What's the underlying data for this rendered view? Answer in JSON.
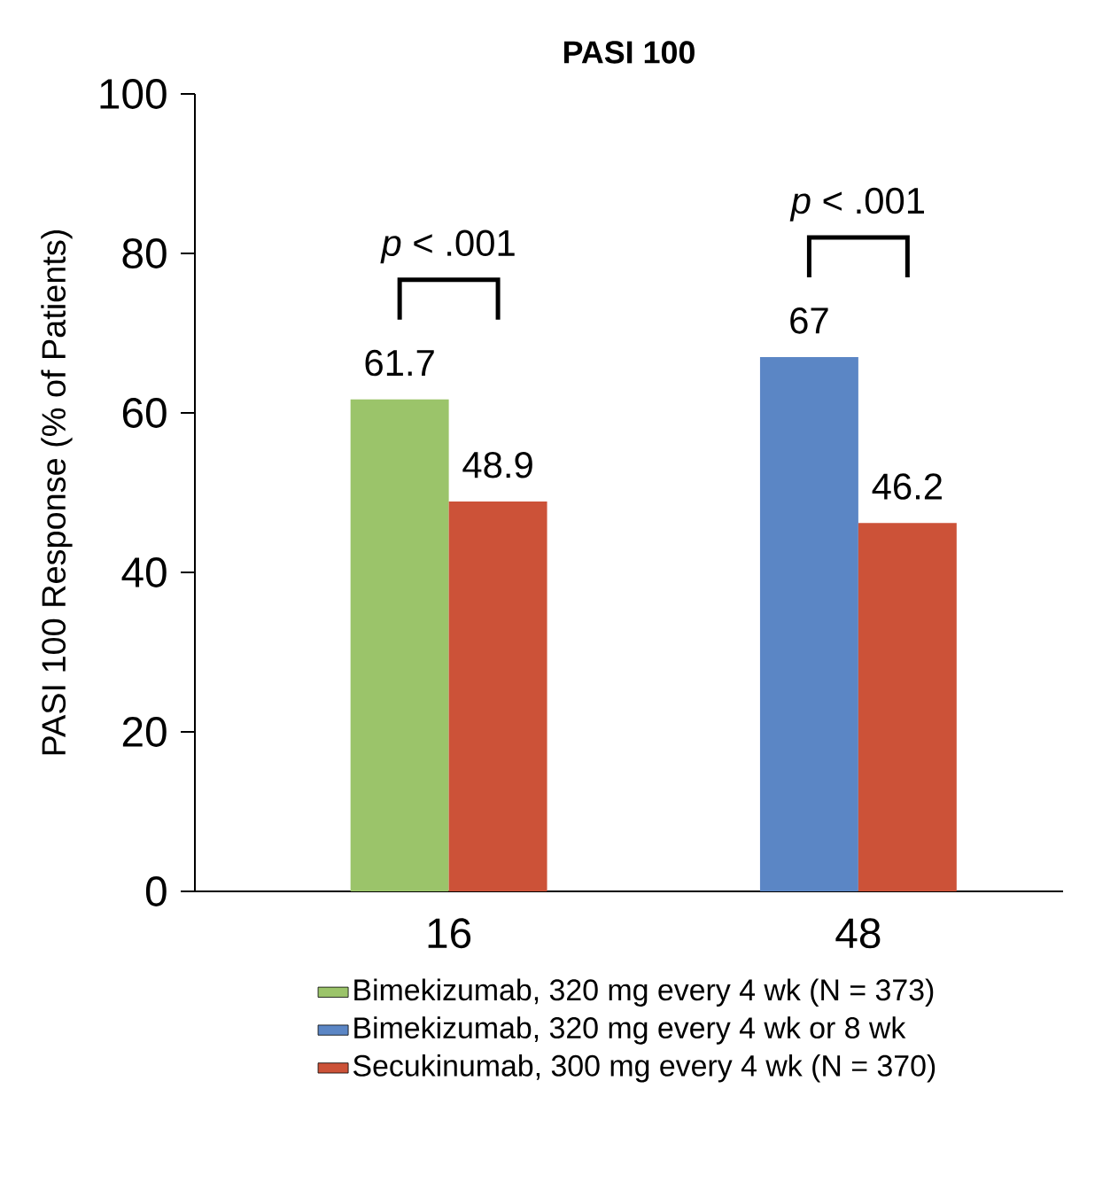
{
  "chart_data": {
    "type": "bar",
    "title": "PASI 100",
    "ylabel": "PASI 100 Response (% of Patients)",
    "categories": [
      "16",
      "48"
    ],
    "series": [
      {
        "name": "Bimekizumab, 320 mg every 4 wk (N = 373)",
        "color": "#9bc46a",
        "values": [
          61.7,
          null
        ]
      },
      {
        "name": "Bimekizumab, 320 mg every 4 wk or 8 wk",
        "color": "#5b86c5",
        "values": [
          null,
          67
        ]
      },
      {
        "name": "Secukinumab, 300 mg every 4 wk (N = 370)",
        "color": "#cc5238",
        "values": [
          48.9,
          46.2
        ]
      }
    ],
    "ylim": [
      0,
      100
    ],
    "yticks": [
      0,
      20,
      40,
      60,
      80,
      100
    ],
    "data_labels": true,
    "legend": "bottom",
    "annotations": [
      "*p* < .001",
      "*p* < .001"
    ]
  }
}
